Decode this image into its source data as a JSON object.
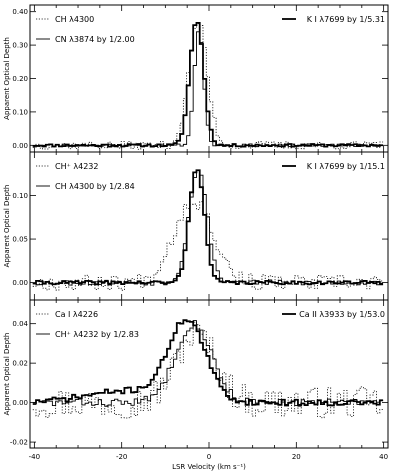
{
  "chart_data": [
    {
      "type": "line",
      "ylabel": "Apparent Optical Depth",
      "ylim": [
        -0.02,
        0.42
      ],
      "xlim": [
        -41,
        41
      ],
      "yticks": [
        0.0,
        0.1,
        0.2,
        0.3,
        0.4
      ],
      "yticklabels": [
        "0.00",
        "0.10",
        "0.20",
        "0.30",
        "0.40"
      ],
      "legend_left": [
        {
          "name": "CH λ4300",
          "style": "dotted"
        },
        {
          "name": "CN λ3874 by 1/2.00",
          "style": "thin"
        }
      ],
      "legend_right": [
        {
          "name": "K I λ7699 by 1/5.31",
          "style": "thick"
        }
      ],
      "series": [
        {
          "name": "K I λ7699 by 1/5.31",
          "style": "thick",
          "center": -2.8,
          "sigma": 1.6,
          "amp": 0.375,
          "noise": 0.004,
          "seed": 11
        },
        {
          "name": "CN λ3874 by 1/2.00",
          "style": "thin",
          "center": -2.3,
          "sigma": 1.1,
          "amp": 0.345,
          "noise": 0.004,
          "seed": 23
        },
        {
          "name": "CH λ4300",
          "style": "dotted",
          "center": -2.5,
          "sigma": 2.1,
          "amp": 0.37,
          "noise": 0.012,
          "seed": 37
        }
      ]
    },
    {
      "type": "line",
      "ylabel": "Apparent Optical Depth",
      "ylim": [
        -0.02,
        0.15
      ],
      "xlim": [
        -41,
        41
      ],
      "yticks": [
        0.0,
        0.05,
        0.1
      ],
      "yticklabels": [
        "0.00",
        "0.05",
        "0.10"
      ],
      "legend_left": [
        {
          "name": "CH⁺ λ4232",
          "style": "dotted"
        },
        {
          "name": "CH λ4300 by 1/2.84",
          "style": "thin"
        }
      ],
      "legend_right": [
        {
          "name": "K I λ7699 by 1/15.1",
          "style": "thick"
        }
      ],
      "series": [
        {
          "name": "K I λ7699 by 1/15.1",
          "style": "thick",
          "center": -2.8,
          "sigma": 1.7,
          "amp": 0.133,
          "noise": 0.002,
          "seed": 41
        },
        {
          "name": "CH λ4300 by 1/2.84",
          "style": "thin",
          "center": -2.5,
          "sigma": 2.1,
          "amp": 0.13,
          "noise": 0.003,
          "seed": 53
        },
        {
          "name": "CH⁺ λ4232",
          "style": "dotted",
          "center": -3.5,
          "sigma": 4.5,
          "amp": 0.095,
          "noise": 0.009,
          "seed": 67
        }
      ]
    },
    {
      "type": "line",
      "xlabel": "LSR Velocity (km s⁻¹)",
      "ylabel": "Apparent Optical Depth",
      "ylim": [
        -0.023,
        0.052
      ],
      "xlim": [
        -41,
        41
      ],
      "xticks": [
        -40,
        -20,
        0,
        20,
        40
      ],
      "xticklabels": [
        "-40",
        "-20",
        "0",
        "20",
        "40"
      ],
      "yticks": [
        -0.02,
        0.0,
        0.02,
        0.04
      ],
      "yticklabels": [
        "-0.02",
        "0.00",
        "0.02",
        "0.04"
      ],
      "legend_left": [
        {
          "name": "Ca I λ4226",
          "style": "dotted"
        },
        {
          "name": "CH⁺ λ4232 by 1/2.83",
          "style": "thin"
        }
      ],
      "legend_right": [
        {
          "name": "Ca II λ3933 by 1/53.0",
          "style": "thick"
        }
      ],
      "series": [
        {
          "name": "Ca II λ3933 by 1/53.0",
          "style": "thick",
          "center": -5.0,
          "sigma": 4.2,
          "amp": 0.04,
          "noise": 0.0015,
          "seed": 71,
          "wing": 0.006
        },
        {
          "name": "CH⁺ λ4232 by 1/2.83",
          "style": "thin",
          "center": -3.5,
          "sigma": 4.2,
          "amp": 0.04,
          "noise": 0.002,
          "seed": 83
        },
        {
          "name": "Ca I λ4226",
          "style": "dotted",
          "center": -3.0,
          "sigma": 4.5,
          "amp": 0.035,
          "noise": 0.008,
          "seed": 97
        }
      ]
    }
  ]
}
